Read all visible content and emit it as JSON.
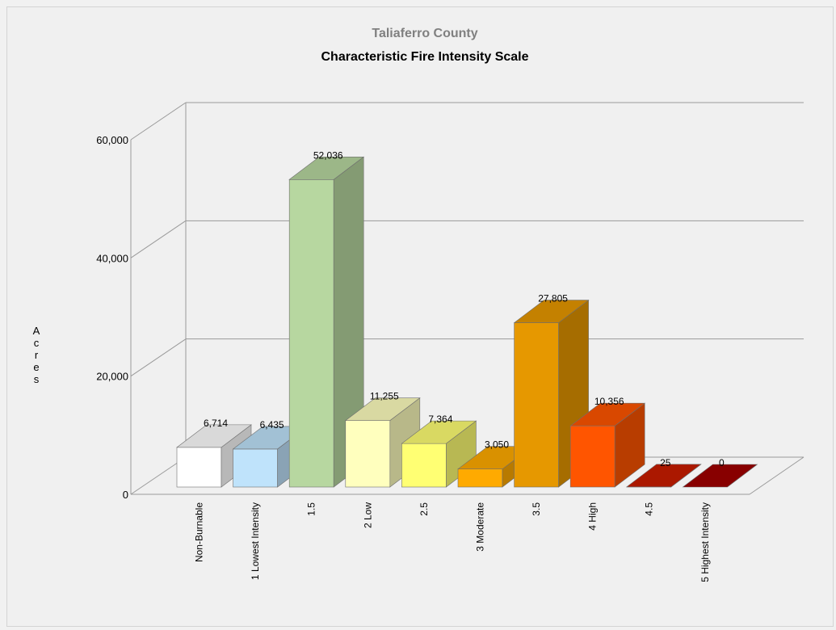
{
  "chart_data": {
    "type": "bar",
    "subtitle": "Taliaferro County",
    "title": "Characteristic Fire Intensity Scale",
    "ylabel": "Acres",
    "xlabel": "",
    "ylim": [
      0,
      60000
    ],
    "yticks": [
      0,
      20000,
      40000,
      60000
    ],
    "ytick_labels": [
      "0",
      "20,000",
      "40,000",
      "60,000"
    ],
    "categories": [
      "Non-Burnable",
      "1 Lowest Intensity",
      "1.5",
      "2 Low",
      "2.5",
      "3 Moderate",
      "3.5",
      "4 High",
      "4.5",
      "5 Highest Intensity"
    ],
    "values": [
      6714,
      6435,
      52036,
      11255,
      7364,
      3050,
      27805,
      10356,
      25,
      0
    ],
    "data_labels": [
      "6,714",
      "6,435",
      "52,036",
      "11,255",
      "7,364",
      "3,050",
      "27,805",
      "10,356",
      "25",
      "0"
    ],
    "colors": [
      "#ffffff",
      "#bfe3fb",
      "#b7d7a0",
      "#ffffbe",
      "#ffff73",
      "#ffaa00",
      "#e69800",
      "#ff5500",
      "#c91c00",
      "#a00000"
    ],
    "grid": true,
    "legend": "none",
    "style": "3d"
  }
}
